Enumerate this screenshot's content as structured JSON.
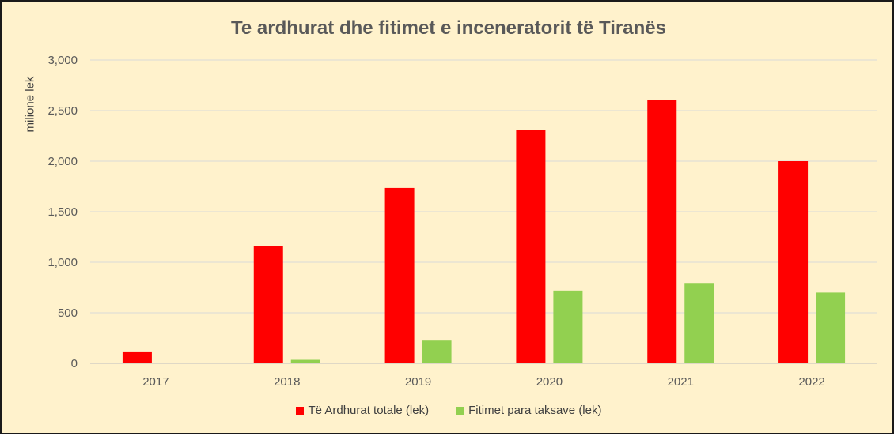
{
  "chart_data": {
    "type": "bar",
    "title": "Te ardhurat dhe fitimet e inceneratorit të Tiranës",
    "xlabel": "",
    "ylabel": "milione lek",
    "categories": [
      "2017",
      "2018",
      "2019",
      "2020",
      "2021",
      "2022"
    ],
    "series": [
      {
        "name": "Të Ardhurat totale (lek)",
        "color": "#ff0000",
        "values": [
          110,
          1160,
          1735,
          2310,
          2605,
          2000
        ]
      },
      {
        "name": "Fitimet para taksave (lek)",
        "color": "#92d050",
        "values": [
          0,
          35,
          225,
          720,
          795,
          700
        ]
      }
    ],
    "ylim": [
      0,
      3000
    ],
    "yticks": [
      0,
      500,
      1000,
      1500,
      2000,
      2500,
      3000
    ],
    "ytick_labels": [
      "0",
      "500",
      "1,000",
      "1,500",
      "2,000",
      "2,500",
      "3,000"
    ],
    "grid": true,
    "legend": "bottom"
  }
}
